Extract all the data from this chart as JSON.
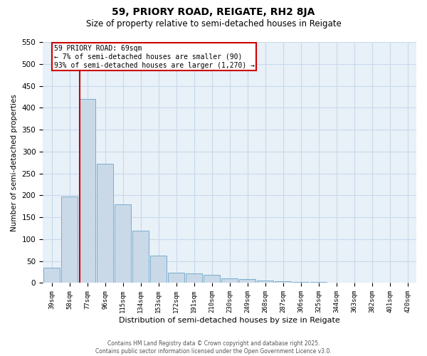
{
  "title_line1": "59, PRIORY ROAD, REIGATE, RH2 8JA",
  "title_line2": "Size of property relative to semi-detached houses in Reigate",
  "xlabel": "Distribution of semi-detached houses by size in Reigate",
  "ylabel": "Number of semi-detached properties",
  "categories": [
    "39sqm",
    "58sqm",
    "77sqm",
    "96sqm",
    "115sqm",
    "134sqm",
    "153sqm",
    "172sqm",
    "191sqm",
    "210sqm",
    "230sqm",
    "249sqm",
    "268sqm",
    "287sqm",
    "306sqm",
    "325sqm",
    "344sqm",
    "363sqm",
    "382sqm",
    "401sqm",
    "420sqm"
  ],
  "values": [
    35,
    197,
    420,
    272,
    180,
    120,
    62,
    23,
    22,
    18,
    10,
    9,
    5,
    4,
    3,
    2,
    1,
    1,
    0,
    0,
    1
  ],
  "bar_color": "#c9d9e8",
  "bar_edge_color": "#7aadcc",
  "grid_color": "#c8daea",
  "bg_color": "#e8f0f8",
  "marker_label_line1": "59 PRIORY ROAD: 69sqm",
  "marker_label_line2": "← 7% of semi-detached houses are smaller (90)",
  "marker_label_line3": "93% of semi-detached houses are larger (1,270) →",
  "marker_color": "#cc0000",
  "annotation_box_color": "#cc0000",
  "ylim": [
    0,
    550
  ],
  "yticks": [
    0,
    50,
    100,
    150,
    200,
    250,
    300,
    350,
    400,
    450,
    500,
    550
  ],
  "footer_line1": "Contains HM Land Registry data © Crown copyright and database right 2025.",
  "footer_line2": "Contains public sector information licensed under the Open Government Licence v3.0."
}
